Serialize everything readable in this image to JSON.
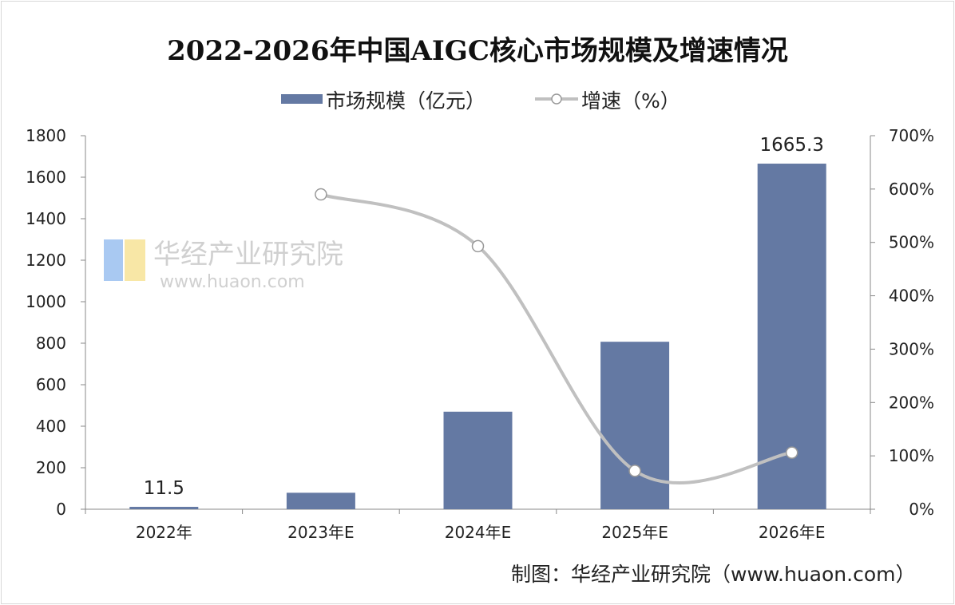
{
  "chart_data": {
    "type": "bar+line",
    "title": "2022-2026年中国AIGC核心市场规模及增速情况",
    "categories": [
      "2022年",
      "2023年E",
      "2024年E",
      "2025年E",
      "2026年E"
    ],
    "series": [
      {
        "name": "市场规模（亿元）",
        "type": "bar",
        "axis": "left",
        "values": [
          11.5,
          79.3,
          470.0,
          807.0,
          1665.3
        ],
        "color": "#6479a3"
      },
      {
        "name": "增速（%）",
        "type": "line",
        "axis": "right",
        "values": [
          null,
          590,
          493,
          72,
          106
        ],
        "color": "#c0c0c0",
        "marker": "hollow-circle"
      }
    ],
    "data_labels": [
      {
        "category": "2022年",
        "text": "11.5"
      },
      {
        "category": "2026年E",
        "text": "1665.3"
      }
    ],
    "left_axis": {
      "range": [
        0,
        1800
      ],
      "ticks": [
        "0",
        "200",
        "400",
        "600",
        "800",
        "1000",
        "1200",
        "1400",
        "1600",
        "1800"
      ]
    },
    "right_axis": {
      "range": [
        0,
        700
      ],
      "ticks": [
        "0%",
        "100%",
        "200%",
        "300%",
        "400%",
        "500%",
        "600%",
        "700%"
      ]
    },
    "grid": false,
    "legend": "top-center"
  },
  "source": "制图：华经产业研究院（www.huaon.com）",
  "watermark": "华经产业研究院 www.huaon.com"
}
